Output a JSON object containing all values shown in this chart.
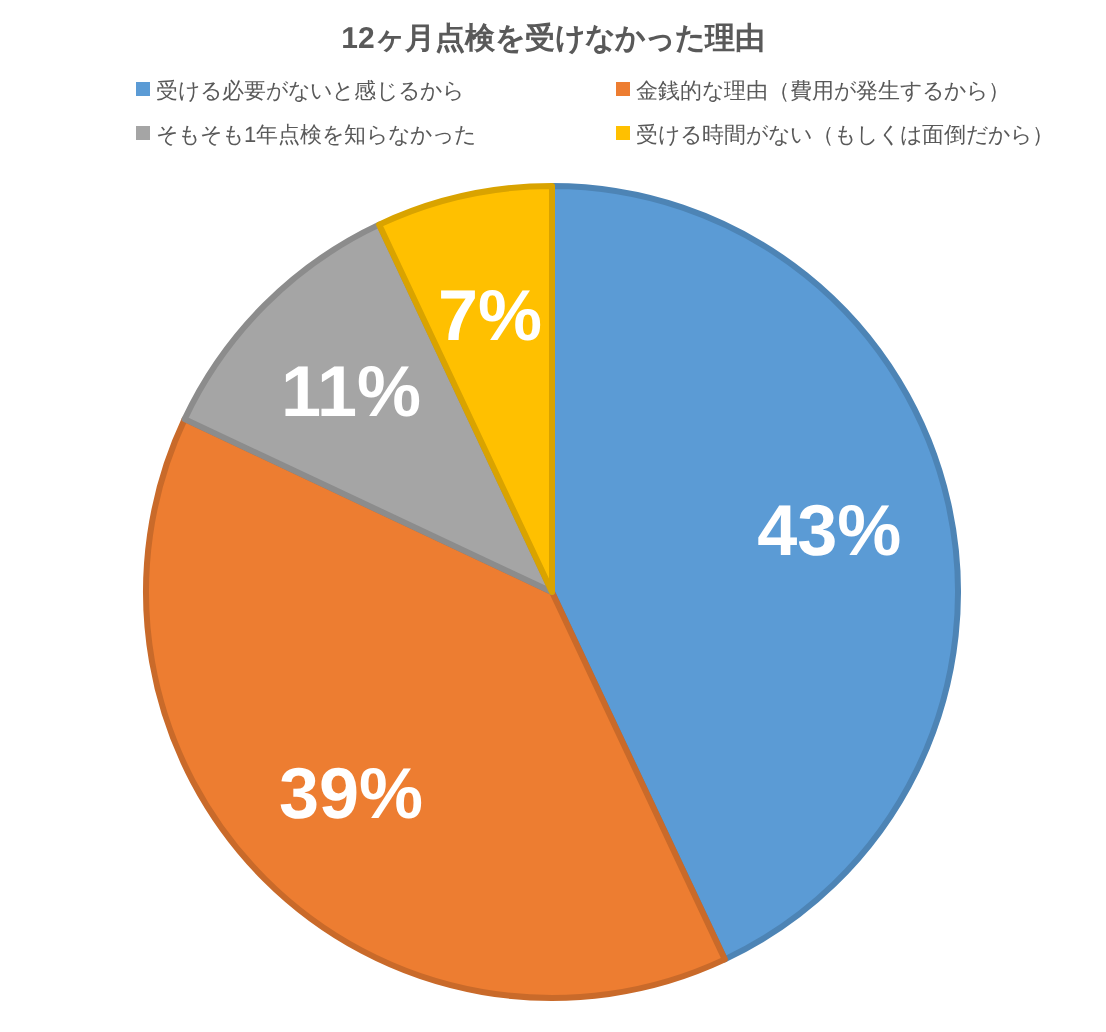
{
  "chart_data": {
    "type": "pie",
    "title": "12ヶ月点検を受けなかった理由",
    "categories": [
      "受ける必要がないと感じるから",
      "金銭的な理由（費用が発生するから）",
      "そもそも1年点検を知らなかった",
      "受ける時間がない（もしくは面倒だから）"
    ],
    "values": [
      43,
      39,
      11,
      7
    ],
    "colors": [
      "#5b9bd5",
      "#ed7d31",
      "#a5a5a5",
      "#ffc000"
    ],
    "value_labels": [
      "43%",
      "39%",
      "11%",
      "7%"
    ],
    "legend": "top"
  }
}
